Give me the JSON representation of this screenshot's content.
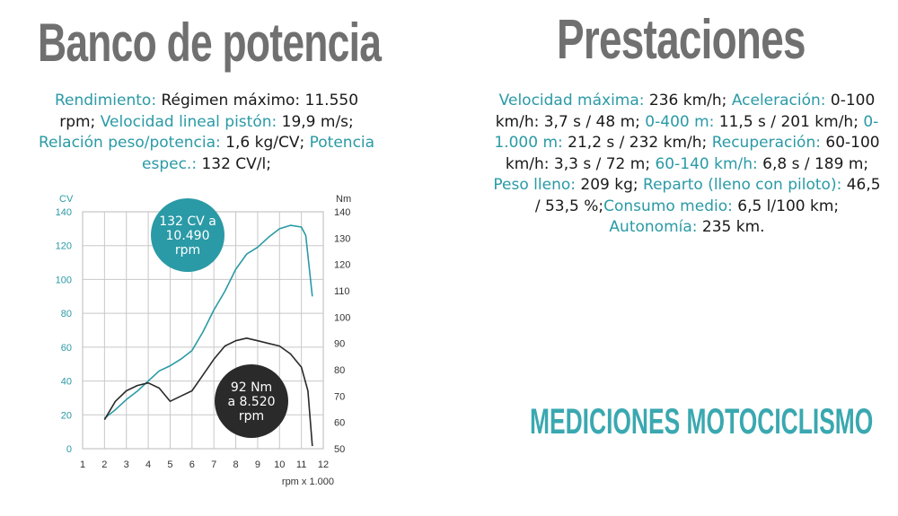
{
  "titles": {
    "left": "Banco de potencia",
    "right": "Prestaciones"
  },
  "spec_left": [
    {
      "label": "Rendimiento:",
      "value": " Régimen máximo: 11.550 rpm; "
    },
    {
      "label": "Velocidad lineal pistón:",
      "value": " 19,9 m/s; "
    },
    {
      "label": "Relación peso/potencia:",
      "value": " 1,6 kg/CV; "
    },
    {
      "label": "Potencia espec.:",
      "value": " 132 CV/l;"
    }
  ],
  "spec_right": [
    {
      "label": "Velocidad máxima:",
      "value": " 236 km/h; "
    },
    {
      "label": "Aceleración:",
      "value": " 0-100 km/h: 3,7 s / 48 m; "
    },
    {
      "label": "0-400 m:",
      "value": " 11,5 s / 201 km/h; "
    },
    {
      "label": "0-1.000 m:",
      "value": " 21,2 s / 232 km/h; "
    },
    {
      "label": "Recuperación:",
      "value": " 60-100 km/h: 3,3 s / 72 m; "
    },
    {
      "label": "60-140 km/h:",
      "value": " 6,8 s / 189 m; "
    },
    {
      "label": "Peso lleno:",
      "value": " 209 kg; "
    },
    {
      "label": "Reparto (lleno con piloto):",
      "value": " 46,5 / 53,5 %;"
    },
    {
      "label": "Consumo medio:",
      "value": " 6,5 l/100 km; "
    },
    {
      "label": "Autonomía:",
      "value": " 235 km."
    }
  ],
  "brand": "MEDICIONES MOTOCICLISMO",
  "colors": {
    "power": "#2a9aa6",
    "torque": "#2a2a2a",
    "grid": "#c8c8c8",
    "title": "#707070"
  },
  "chart_data": {
    "type": "line",
    "xlabel": "rpm x 1.000",
    "ylabel_left": "CV",
    "ylabel_right": "Nm",
    "xlim": [
      1,
      12
    ],
    "xticks": [
      "1",
      "2",
      "3",
      "4",
      "5",
      "6",
      "7",
      "8",
      "9",
      "10",
      "11",
      "12"
    ],
    "ylim_left": [
      0,
      140
    ],
    "yticks_left": [
      "0",
      "20",
      "40",
      "60",
      "80",
      "100",
      "120",
      "140"
    ],
    "ylim_right": [
      50,
      140
    ],
    "yticks_right": [
      "50",
      "60",
      "70",
      "80",
      "90",
      "100",
      "110",
      "120",
      "130",
      "140"
    ],
    "grid": true,
    "series": [
      {
        "axis": "left",
        "x": [
          2,
          2.5,
          3,
          3.5,
          4,
          4.5,
          5,
          5.5,
          6,
          6.5,
          7,
          7.5,
          8,
          8.5,
          9,
          9.5,
          10,
          10.5,
          11,
          11.2,
          11.5
        ],
        "y": [
          18,
          23,
          29,
          34,
          40,
          46,
          49,
          53,
          58,
          69,
          82,
          93,
          106,
          115,
          119,
          125,
          130,
          132,
          131,
          126,
          90
        ]
      },
      {
        "axis": "right",
        "x": [
          2,
          2.5,
          3,
          3.5,
          4,
          4.5,
          5,
          5.5,
          6,
          6.5,
          7,
          7.5,
          8,
          8.5,
          9,
          9.5,
          10,
          10.5,
          11,
          11.3,
          11.5
        ],
        "y": [
          61,
          68,
          72,
          74,
          75,
          73,
          68,
          70,
          72,
          78,
          84,
          89,
          91,
          92,
          91,
          90,
          89,
          86,
          81,
          72,
          51
        ]
      }
    ],
    "annotations": [
      {
        "series": 0,
        "lines": [
          "132 CV a",
          "10.490",
          "rpm"
        ]
      },
      {
        "series": 1,
        "lines": [
          "92 Nm",
          "a 8.520",
          "rpm"
        ]
      }
    ]
  }
}
